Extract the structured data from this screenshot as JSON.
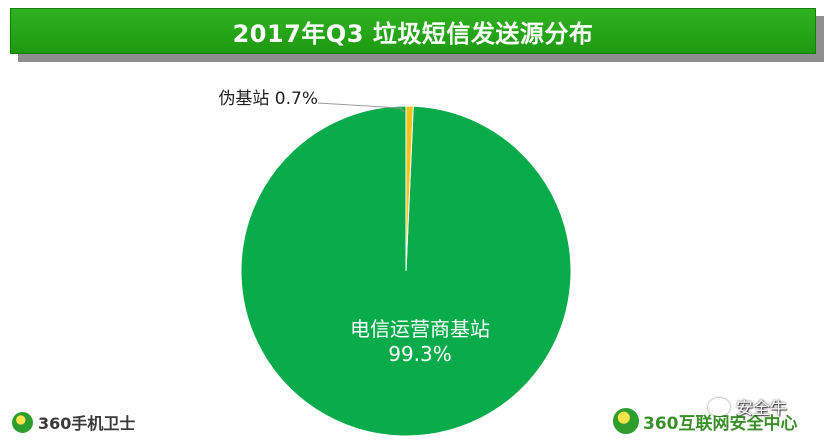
{
  "title": "2017年Q3 垃圾短信发送源分布",
  "chart_data": {
    "type": "pie",
    "title": "2017年Q3 垃圾短信发送源分布",
    "slices": [
      {
        "label": "电信运营商基站",
        "value": 99.3,
        "value_label": "99.3%",
        "color": "#0aab4a"
      },
      {
        "label": "伪基站",
        "value": 0.7,
        "value_label": "0.7%",
        "color": "#f2c21a"
      }
    ],
    "legend": "none",
    "start": "top (12 o'clock), clockwise"
  },
  "brand_left": {
    "text": "360手机卫士",
    "icon": "360-logo-icon"
  },
  "brand_right": {
    "text": "360互联网安全中心",
    "icon": "360-logo-icon"
  },
  "watermark": {
    "text": "安全牛",
    "icon": "wechat-icon"
  }
}
